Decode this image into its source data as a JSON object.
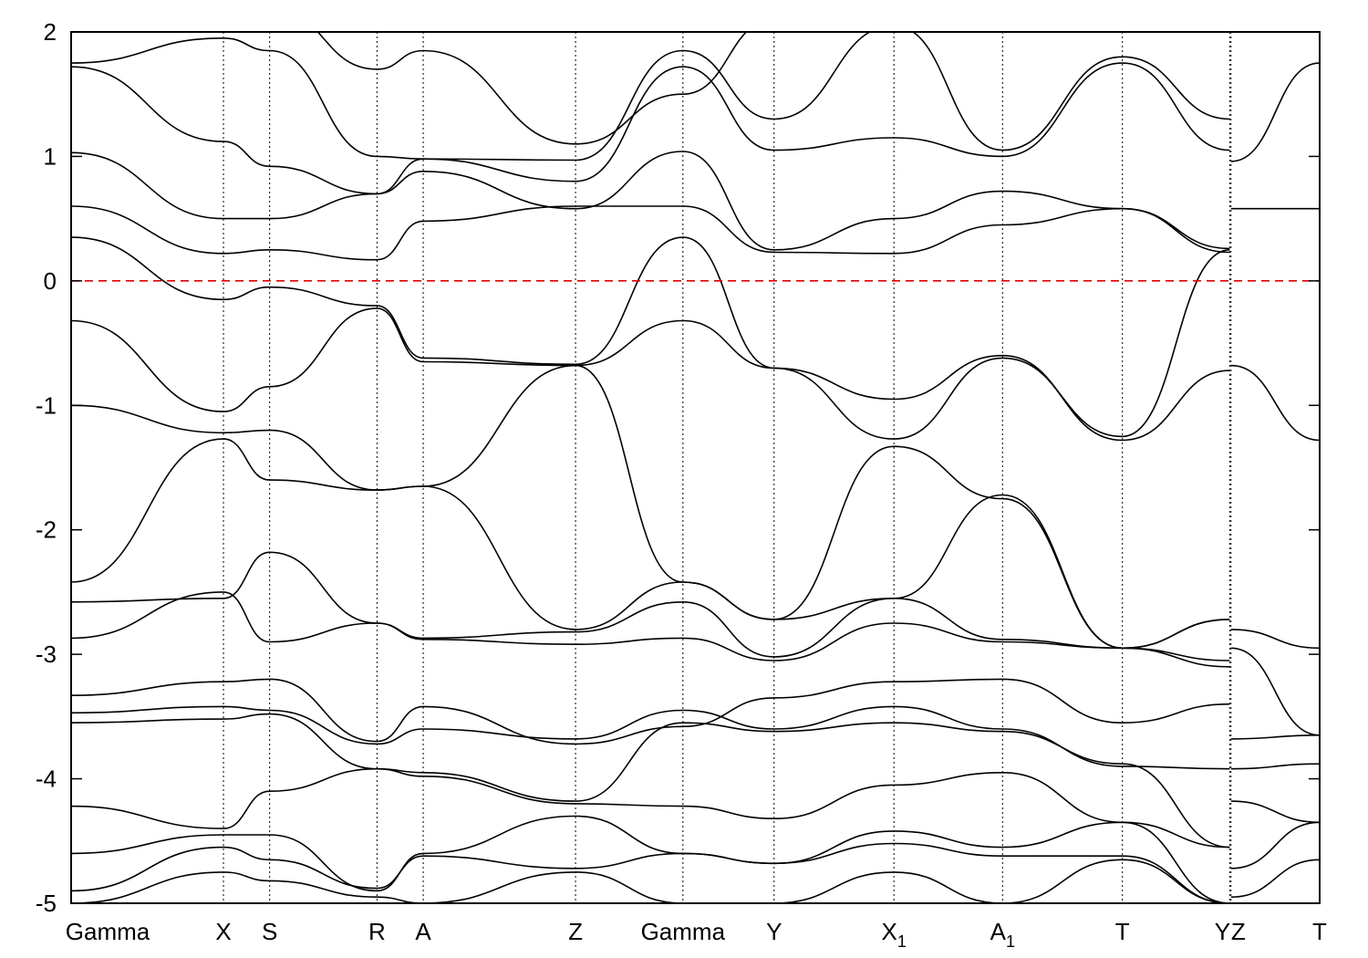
{
  "chart_data": {
    "type": "line",
    "title": "",
    "xlabel": "",
    "ylabel": "",
    "ylim": [
      -5,
      2
    ],
    "yticks": [
      -5,
      -4,
      -3,
      -2,
      -1,
      0,
      1,
      2
    ],
    "ytick_labels": [
      "-5",
      "-4",
      "-3",
      "-2",
      "-1",
      "0",
      "1",
      "2"
    ],
    "xlim": [
      0,
      1
    ],
    "grid": false,
    "legend": "none",
    "fermi_level": {
      "y": 0,
      "color": "#e00000",
      "style": "dashed"
    },
    "high_symmetry_points": [
      {
        "label": "Gamma",
        "sub": "",
        "x": 0.0
      },
      {
        "label": "X",
        "sub": "",
        "x": 0.122
      },
      {
        "label": "S",
        "sub": "",
        "x": 0.159
      },
      {
        "label": "R",
        "sub": "",
        "x": 0.245
      },
      {
        "label": "A",
        "sub": "",
        "x": 0.282
      },
      {
        "label": "Z",
        "sub": "",
        "x": 0.404
      },
      {
        "label": "Gamma",
        "sub": "",
        "x": 0.49
      },
      {
        "label": "Y",
        "sub": "",
        "x": 0.563
      },
      {
        "label": "X",
        "sub": "1",
        "x": 0.659
      },
      {
        "label": "A",
        "sub": "1",
        "x": 0.746
      },
      {
        "label": "T",
        "sub": "",
        "x": 0.842
      },
      {
        "label": "Y",
        "sub": "",
        "x": 0.928
      },
      {
        "label": "Z",
        "sub": "",
        "x": 0.929
      },
      {
        "label": "T",
        "sub": "",
        "x": 1.0
      }
    ],
    "segments": [
      {
        "x0": 0.0,
        "x1": 0.928,
        "nodes": [
          0.0,
          0.122,
          0.159,
          0.245,
          0.282,
          0.404,
          0.49,
          0.563,
          0.659,
          0.746,
          0.842,
          0.928
        ],
        "series": [
          {
            "values": [
              2.05,
              2.2,
              2.2,
              1.7,
              1.85,
              1.1,
              1.5,
              2.1,
              2.2,
              2.0,
              2.0,
              2.1
            ]
          },
          {
            "values": [
              1.75,
              1.95,
              1.85,
              1.0,
              0.98,
              0.97,
              1.85,
              1.3,
              2.05,
              1.05,
              1.8,
              1.3
            ]
          },
          {
            "values": [
              1.72,
              1.12,
              0.92,
              0.7,
              0.98,
              0.8,
              1.72,
              1.05,
              1.15,
              1.0,
              1.75,
              1.05
            ]
          },
          {
            "values": [
              1.03,
              0.5,
              0.5,
              0.7,
              0.88,
              0.58,
              1.04,
              0.25,
              0.5,
              0.72,
              0.58,
              0.26
            ]
          },
          {
            "values": [
              0.6,
              0.22,
              0.25,
              0.17,
              0.48,
              0.6,
              0.6,
              0.23,
              0.22,
              0.45,
              0.58,
              0.23
            ]
          },
          {
            "values": [
              0.35,
              -0.15,
              -0.05,
              -0.2,
              -0.62,
              -0.67,
              0.35,
              -0.7,
              -0.95,
              -0.6,
              -1.28,
              -0.72
            ]
          },
          {
            "values": [
              -0.32,
              -1.05,
              -0.85,
              -0.22,
              -0.65,
              -0.68,
              -0.32,
              -0.7,
              -1.27,
              -0.62,
              -1.25,
              0.25
            ]
          },
          {
            "values": [
              -1.0,
              -1.22,
              -1.2,
              -1.68,
              -1.65,
              -0.68,
              -2.42,
              -2.72,
              -2.55,
              -1.72,
              -2.95,
              -2.72
            ]
          },
          {
            "values": [
              -2.42,
              -1.27,
              -1.6,
              -1.68,
              -1.65,
              -2.8,
              -2.42,
              -2.72,
              -1.33,
              -1.75,
              -2.95,
              -2.72
            ]
          },
          {
            "values": [
              -2.58,
              -2.55,
              -2.18,
              -2.75,
              -2.87,
              -2.82,
              -2.58,
              -3.02,
              -2.55,
              -2.88,
              -2.95,
              -3.05
            ]
          },
          {
            "values": [
              -2.87,
              -2.5,
              -2.9,
              -2.75,
              -2.88,
              -2.92,
              -2.87,
              -3.05,
              -2.75,
              -2.9,
              -2.95,
              -3.1
            ]
          },
          {
            "values": [
              -3.33,
              -3.22,
              -3.2,
              -3.7,
              -3.42,
              -3.72,
              -3.58,
              -3.35,
              -3.22,
              -3.2,
              -3.55,
              -3.4
            ]
          },
          {
            "values": [
              -3.47,
              -3.42,
              -3.45,
              -3.72,
              -3.6,
              -3.68,
              -3.45,
              -3.6,
              -3.42,
              -3.6,
              -3.9,
              -3.92
            ]
          },
          {
            "values": [
              -3.55,
              -3.52,
              -3.48,
              -3.92,
              -3.95,
              -4.18,
              -3.55,
              -3.62,
              -3.55,
              -3.62,
              -3.88,
              -4.55
            ]
          },
          {
            "values": [
              -4.22,
              -4.4,
              -4.1,
              -3.92,
              -3.98,
              -4.2,
              -4.22,
              -4.32,
              -4.05,
              -3.95,
              -4.35,
              -4.55
            ]
          },
          {
            "values": [
              -4.6,
              -4.45,
              -4.45,
              -4.9,
              -4.6,
              -4.3,
              -4.6,
              -4.68,
              -4.42,
              -4.55,
              -4.35,
              -5.0
            ]
          },
          {
            "values": [
              -4.9,
              -4.55,
              -4.65,
              -4.88,
              -4.62,
              -4.72,
              -4.6,
              -4.68,
              -4.52,
              -4.62,
              -4.62,
              -5.0
            ]
          },
          {
            "values": [
              -5.0,
              -4.75,
              -4.82,
              -4.95,
              -5.0,
              -4.75,
              -5.0,
              -5.0,
              -4.75,
              -5.0,
              -4.65,
              -5.0
            ]
          }
        ]
      },
      {
        "x0": 0.929,
        "x1": 1.0,
        "nodes": [
          0.929,
          1.0
        ],
        "series": [
          {
            "values": [
              0.96,
              1.75
            ]
          },
          {
            "values": [
              0.58,
              0.58
            ]
          },
          {
            "values": [
              -0.68,
              -1.28
            ]
          },
          {
            "values": [
              -2.8,
              -2.95
            ]
          },
          {
            "values": [
              -2.95,
              -3.65
            ]
          },
          {
            "values": [
              -3.68,
              -3.65
            ]
          },
          {
            "values": [
              -3.92,
              -3.88
            ]
          },
          {
            "values": [
              -4.18,
              -4.35
            ]
          },
          {
            "values": [
              -4.72,
              -4.35
            ]
          },
          {
            "values": [
              -4.95,
              -4.65
            ]
          }
        ]
      }
    ]
  }
}
